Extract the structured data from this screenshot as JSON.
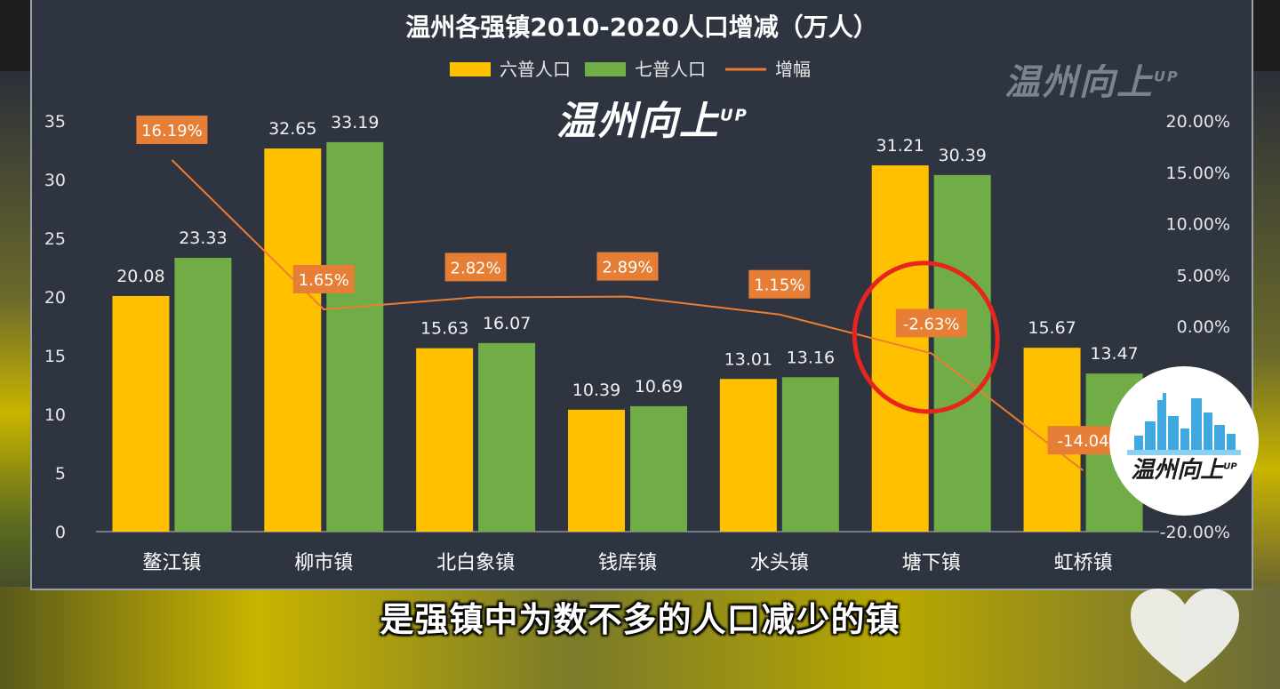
{
  "chart_data": {
    "type": "bar",
    "title": "温州各强镇2010-2020人口增减（万人）",
    "categories": [
      "鳌江镇",
      "柳市镇",
      "北白象镇",
      "钱库镇",
      "水头镇",
      "塘下镇",
      "虹桥镇"
    ],
    "series": [
      {
        "name": "六普人口",
        "type": "bar",
        "color": "#ffc000",
        "axis": "left",
        "values": [
          20.08,
          32.65,
          15.63,
          10.39,
          13.01,
          31.21,
          15.67
        ],
        "labels": [
          "20.08",
          "32.65",
          "15.63",
          "10.39",
          "13.01",
          "31.21",
          "15.67"
        ]
      },
      {
        "name": "七普人口",
        "type": "bar",
        "color": "#70ad47",
        "axis": "left",
        "values": [
          23.33,
          33.19,
          16.07,
          10.69,
          13.16,
          30.39,
          13.47
        ],
        "labels": [
          "23.33",
          "33.19",
          "16.07",
          "10.69",
          "13.16",
          "30.39",
          "13.47"
        ]
      },
      {
        "name": "增幅",
        "type": "line",
        "color": "#ed7d31",
        "axis": "right",
        "values": [
          16.19,
          1.65,
          2.82,
          2.89,
          1.15,
          -2.63,
          -14.04
        ],
        "labels": [
          "16.19%",
          "1.65%",
          "2.82%",
          "2.89%",
          "1.15%",
          "-2.63%",
          "-14.04"
        ]
      }
    ],
    "y_left": {
      "ticks": [
        "0",
        "5",
        "10",
        "15",
        "20",
        "25",
        "30",
        "35"
      ],
      "range": [
        0,
        35
      ]
    },
    "y_right": {
      "ticks": [
        "-20.00%",
        "0.00%",
        "5.00%",
        "10.00%",
        "15.00%",
        "20.00%"
      ],
      "tick_values": [
        -20,
        0,
        5,
        10,
        15,
        20
      ],
      "range": [
        -20,
        20
      ]
    },
    "legend_position": "top-center",
    "highlight": "塘下镇",
    "grid": false
  },
  "overlay": {
    "watermark": "温州向上",
    "watermark_sup": "UP",
    "caption": "是强镇中为数不多的人口减少的镇"
  },
  "colors": {
    "panel_bg": "#2e3440",
    "text": "#ffffff",
    "axis_text": "#e6e6e6",
    "label_box": "#e67e36",
    "highlight_ring": "#e8241e"
  }
}
